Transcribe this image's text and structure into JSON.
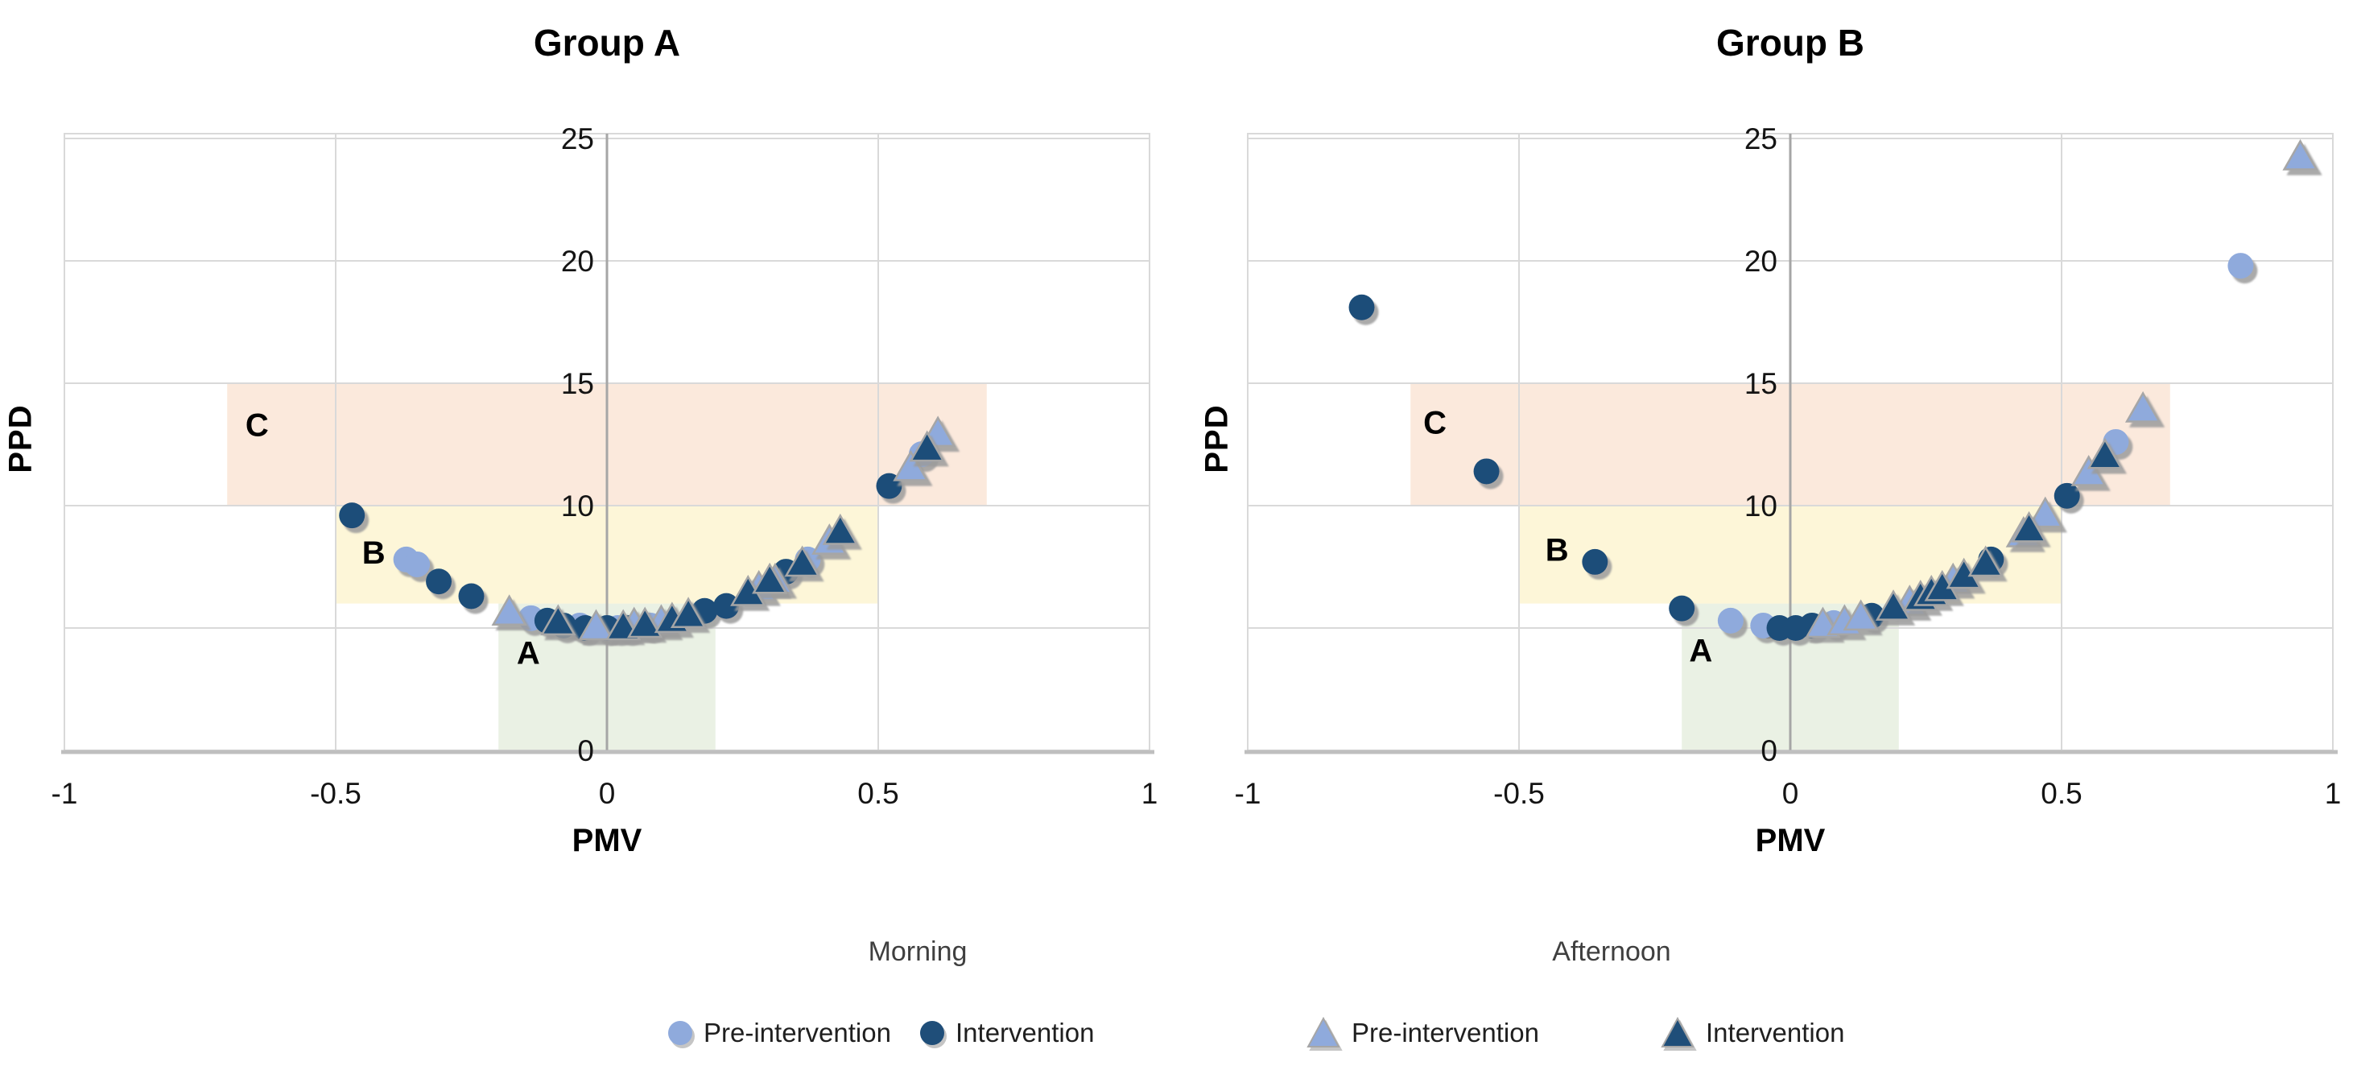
{
  "colors": {
    "pre_intervention": "#8FAADC",
    "intervention": "#1F4E79",
    "triangle_border": "#A6A6A6",
    "zone_a_fill": "#EAF1E4",
    "zone_b_fill": "#FDF6D8",
    "zone_c_fill": "#FBE9DC",
    "gridline": "#D9D9D9",
    "axis_line": "#A6A6A6",
    "bottom_axis_line": "#BFBFBF",
    "marker_shadow": "#9B9B9B"
  },
  "legend": {
    "groups": [
      {
        "title": "Morning",
        "marker": "circle",
        "items": [
          {
            "label": "Pre-intervention",
            "color": "#8FAADC"
          },
          {
            "label": "Intervention",
            "color": "#1F4E79"
          }
        ]
      },
      {
        "title": "Afternoon",
        "marker": "triangle",
        "items": [
          {
            "label": "Pre-intervention",
            "color": "#8FAADC"
          },
          {
            "label": "Intervention",
            "color": "#1F4E79"
          }
        ]
      }
    ]
  },
  "chart_data": [
    {
      "type": "scatter",
      "title": "Group A",
      "xlabel": "PMV",
      "ylabel": "PPD",
      "xlim": [
        -1,
        1
      ],
      "ylim": [
        0,
        25
      ],
      "x_ticks": [
        -1,
        -0.5,
        0,
        0.5,
        1
      ],
      "y_ticks": [
        0,
        5,
        10,
        15,
        20,
        25
      ],
      "grid": true,
      "zones": [
        {
          "label": "A",
          "x": [
            -0.2,
            0.2
          ],
          "y": [
            0,
            6
          ],
          "label_xy": [
            -0.145,
            4.0
          ]
        },
        {
          "label": "B",
          "x": [
            -0.5,
            0.5
          ],
          "y": [
            6,
            10
          ],
          "label_xy": [
            -0.43,
            8.1
          ]
        },
        {
          "label": "C",
          "x": [
            -0.7,
            0.7
          ],
          "y": [
            10,
            15
          ],
          "label_xy": [
            -0.645,
            13.3
          ]
        }
      ],
      "series": [
        {
          "name": "Morning Pre-intervention",
          "time": "Morning",
          "phase": "Pre-intervention",
          "marker": "circle",
          "color_key": "pre_intervention",
          "points": [
            [
              -0.37,
              7.8
            ],
            [
              -0.35,
              7.6
            ],
            [
              -0.14,
              5.4
            ],
            [
              -0.05,
              5.1
            ],
            [
              0.02,
              5.0
            ],
            [
              0.08,
              5.1
            ],
            [
              0.37,
              7.8
            ],
            [
              0.58,
              12.1
            ]
          ]
        },
        {
          "name": "Morning Intervention",
          "time": "Morning",
          "phase": "Intervention",
          "marker": "circle",
          "color_key": "intervention",
          "points": [
            [
              -0.47,
              9.6
            ],
            [
              -0.31,
              6.9
            ],
            [
              -0.25,
              6.3
            ],
            [
              -0.11,
              5.3
            ],
            [
              -0.08,
              5.1
            ],
            [
              -0.04,
              5.0
            ],
            [
              0.0,
              5.0
            ],
            [
              0.04,
              5.0
            ],
            [
              0.18,
              5.7
            ],
            [
              0.22,
              5.9
            ],
            [
              0.33,
              7.3
            ],
            [
              0.52,
              10.8
            ]
          ]
        },
        {
          "name": "Afternoon Pre-intervention",
          "time": "Afternoon",
          "phase": "Pre-intervention",
          "marker": "triangle",
          "color_key": "pre_intervention",
          "points": [
            [
              -0.18,
              5.6
            ],
            [
              -0.02,
              5.0
            ],
            [
              0.05,
              5.1
            ],
            [
              0.1,
              5.2
            ],
            [
              0.28,
              6.6
            ],
            [
              0.31,
              6.9
            ],
            [
              0.41,
              8.5
            ],
            [
              0.56,
              11.5
            ],
            [
              0.61,
              12.9
            ]
          ]
        },
        {
          "name": "Afternoon Intervention",
          "time": "Afternoon",
          "phase": "Intervention",
          "marker": "triangle",
          "color_key": "intervention",
          "points": [
            [
              -0.09,
              5.2
            ],
            [
              0.03,
              5.0
            ],
            [
              0.07,
              5.1
            ],
            [
              0.12,
              5.3
            ],
            [
              0.15,
              5.5
            ],
            [
              0.26,
              6.4
            ],
            [
              0.3,
              6.9
            ],
            [
              0.36,
              7.6
            ],
            [
              0.43,
              8.9
            ],
            [
              0.59,
              12.3
            ]
          ]
        }
      ]
    },
    {
      "type": "scatter",
      "title": "Group B",
      "xlabel": "PMV",
      "ylabel": "PPD",
      "xlim": [
        -1,
        1
      ],
      "ylim": [
        0,
        25
      ],
      "x_ticks": [
        -1,
        -0.5,
        0,
        0.5,
        1
      ],
      "y_ticks": [
        0,
        5,
        10,
        15,
        20,
        25
      ],
      "grid": true,
      "zones": [
        {
          "label": "A",
          "x": [
            -0.2,
            0.2
          ],
          "y": [
            0,
            6
          ],
          "label_xy": [
            -0.165,
            4.1
          ]
        },
        {
          "label": "B",
          "x": [
            -0.5,
            0.5
          ],
          "y": [
            6,
            10
          ],
          "label_xy": [
            -0.43,
            8.2
          ]
        },
        {
          "label": "C",
          "x": [
            -0.7,
            0.7
          ],
          "y": [
            10,
            15
          ],
          "label_xy": [
            -0.655,
            13.4
          ]
        }
      ],
      "series": [
        {
          "name": "Morning Pre-intervention",
          "time": "Morning",
          "phase": "Pre-intervention",
          "marker": "circle",
          "color_key": "pre_intervention",
          "points": [
            [
              -0.11,
              5.3
            ],
            [
              -0.05,
              5.1
            ],
            [
              0.08,
              5.2
            ],
            [
              0.6,
              12.6
            ],
            [
              0.83,
              19.8
            ]
          ]
        },
        {
          "name": "Morning Intervention",
          "time": "Morning",
          "phase": "Intervention",
          "marker": "circle",
          "color_key": "intervention",
          "points": [
            [
              -0.79,
              18.1
            ],
            [
              -0.56,
              11.4
            ],
            [
              -0.36,
              7.7
            ],
            [
              -0.2,
              5.8
            ],
            [
              -0.02,
              5.0
            ],
            [
              0.01,
              5.0
            ],
            [
              0.04,
              5.1
            ],
            [
              0.15,
              5.5
            ],
            [
              0.37,
              7.8
            ],
            [
              0.51,
              10.4
            ]
          ]
        },
        {
          "name": "Afternoon Pre-intervention",
          "time": "Afternoon",
          "phase": "Pre-intervention",
          "marker": "triangle",
          "color_key": "pre_intervention",
          "points": [
            [
              0.06,
              5.1
            ],
            [
              0.1,
              5.2
            ],
            [
              0.13,
              5.4
            ],
            [
              0.22,
              6.0
            ],
            [
              0.3,
              6.9
            ],
            [
              0.43,
              8.8
            ],
            [
              0.47,
              9.6
            ],
            [
              0.55,
              11.3
            ],
            [
              0.65,
              13.9
            ],
            [
              0.94,
              24.2
            ]
          ]
        },
        {
          "name": "Afternoon Intervention",
          "time": "Afternoon",
          "phase": "Intervention",
          "marker": "triangle",
          "color_key": "intervention",
          "points": [
            [
              0.19,
              5.8
            ],
            [
              0.24,
              6.2
            ],
            [
              0.26,
              6.4
            ],
            [
              0.28,
              6.6
            ],
            [
              0.32,
              7.1
            ],
            [
              0.36,
              7.6
            ],
            [
              0.44,
              9.0
            ],
            [
              0.58,
              12.0
            ]
          ]
        }
      ]
    }
  ]
}
